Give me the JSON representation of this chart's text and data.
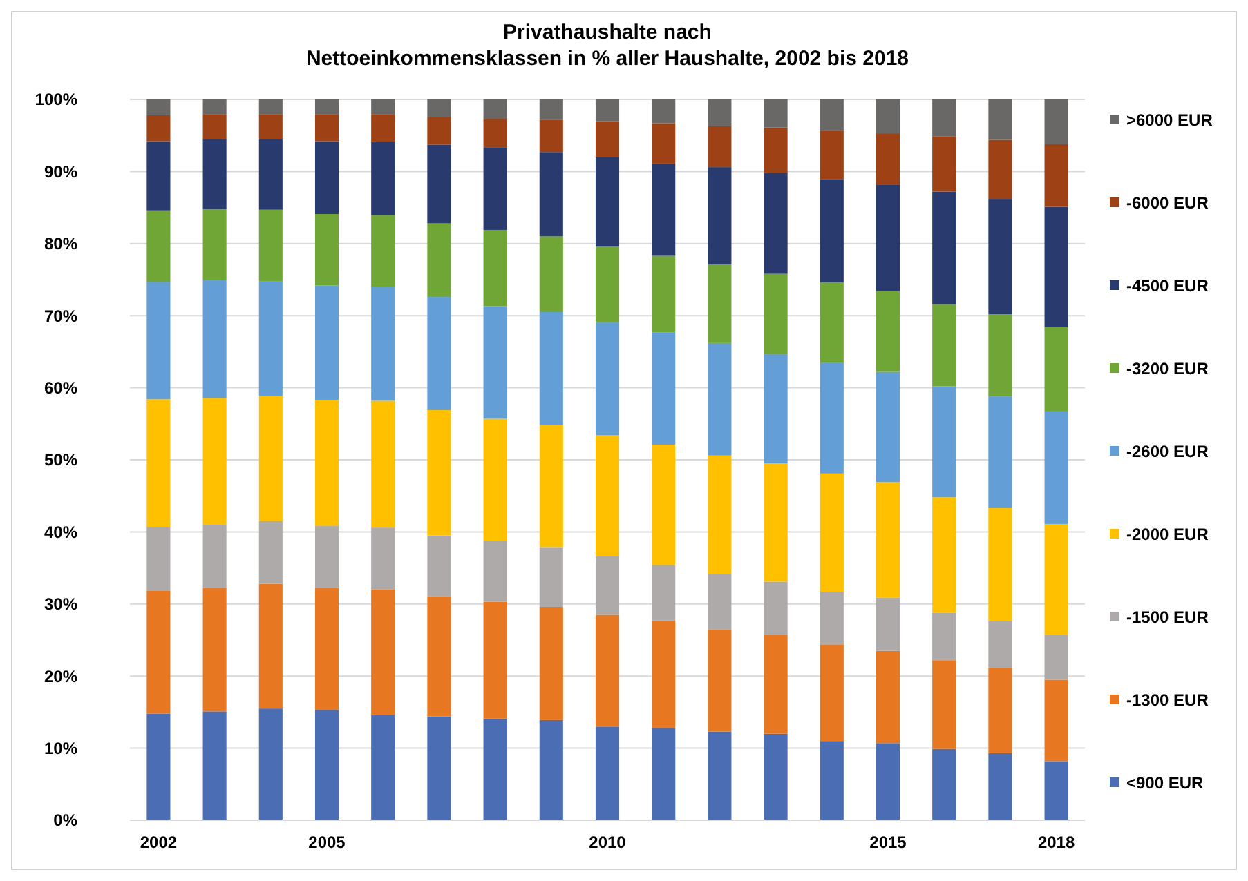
{
  "chart_data": {
    "type": "bar",
    "stacked": true,
    "title": "Privathaushalte nach\nNettoeinkommensklassen in % aller Haushalte, 2002 bis 2018",
    "categories": [
      "2002",
      null,
      null,
      "2005",
      null,
      null,
      null,
      null,
      "2010",
      null,
      null,
      null,
      null,
      "2015",
      null,
      null,
      "2018"
    ],
    "ylim": [
      0,
      100
    ],
    "yticks": [
      {
        "value": 0,
        "label": "0%"
      },
      {
        "value": 10,
        "label": "10%"
      },
      {
        "value": 20,
        "label": "20%"
      },
      {
        "value": 30,
        "label": "30%"
      },
      {
        "value": 40,
        "label": "40%"
      },
      {
        "value": 50,
        "label": "50%"
      },
      {
        "value": 60,
        "label": "60%"
      },
      {
        "value": 70,
        "label": "70%"
      },
      {
        "value": 80,
        "label": "80%"
      },
      {
        "value": 90,
        "label": "90%"
      },
      {
        "value": 100,
        "label": "100%"
      }
    ],
    "grid": "y",
    "legend": "right",
    "series": [
      {
        "name": "<900 EUR",
        "color": "#4a6db4",
        "values": [
          14.8,
          15.1,
          15.5,
          15.3,
          14.6,
          14.4,
          14.1,
          13.9,
          13.0,
          12.8,
          12.3,
          12.0,
          11.0,
          10.7,
          9.9,
          9.3,
          8.2
        ]
      },
      {
        "name": "-1300 EUR",
        "color": "#e87722",
        "values": [
          17.0,
          17.1,
          17.3,
          16.9,
          17.4,
          16.7,
          16.2,
          15.7,
          15.5,
          14.9,
          14.2,
          13.7,
          13.4,
          12.8,
          12.3,
          11.8,
          11.3
        ]
      },
      {
        "name": "-1500 EUR",
        "color": "#aeaaaa",
        "values": [
          8.9,
          8.8,
          8.7,
          8.6,
          8.6,
          8.4,
          8.4,
          8.3,
          8.1,
          7.7,
          7.6,
          7.4,
          7.3,
          7.4,
          6.6,
          6.5,
          6.2
        ]
      },
      {
        "name": "-2000 EUR",
        "color": "#ffc000",
        "values": [
          17.7,
          17.6,
          17.4,
          17.5,
          17.6,
          17.4,
          17.0,
          16.9,
          16.8,
          16.7,
          16.5,
          16.4,
          16.4,
          16.0,
          16.0,
          15.7,
          15.4
        ]
      },
      {
        "name": "-2600 EUR",
        "color": "#639fd6",
        "values": [
          16.3,
          16.3,
          15.9,
          15.9,
          15.8,
          15.7,
          15.6,
          15.7,
          15.7,
          15.6,
          15.6,
          15.2,
          15.4,
          15.3,
          15.4,
          15.5,
          15.7
        ]
      },
      {
        "name": "-3200 EUR",
        "color": "#70a635",
        "values": [
          9.9,
          9.9,
          9.9,
          9.9,
          9.9,
          10.2,
          10.6,
          10.5,
          10.5,
          10.6,
          10.9,
          11.1,
          11.1,
          11.2,
          11.4,
          11.4,
          11.6
        ]
      },
      {
        "name": "-4500 EUR",
        "color": "#283a6e",
        "values": [
          9.6,
          9.7,
          9.8,
          10.1,
          10.2,
          10.9,
          11.4,
          11.7,
          12.4,
          12.8,
          13.5,
          14.0,
          14.3,
          14.8,
          15.6,
          16.0,
          16.7
        ]
      },
      {
        "name": "-6000 EUR",
        "color": "#9e4215",
        "values": [
          3.6,
          3.4,
          3.4,
          3.7,
          3.8,
          3.9,
          4.0,
          4.5,
          5.0,
          5.6,
          5.7,
          6.3,
          6.7,
          7.1,
          7.7,
          8.2,
          8.7
        ]
      },
      {
        "name": ">6000 EUR",
        "color": "#6a6866",
        "values": [
          2.2,
          2.1,
          2.1,
          2.1,
          2.1,
          2.4,
          2.7,
          2.8,
          3.0,
          3.3,
          3.7,
          3.9,
          4.4,
          4.7,
          5.1,
          5.6,
          6.2
        ]
      }
    ]
  }
}
